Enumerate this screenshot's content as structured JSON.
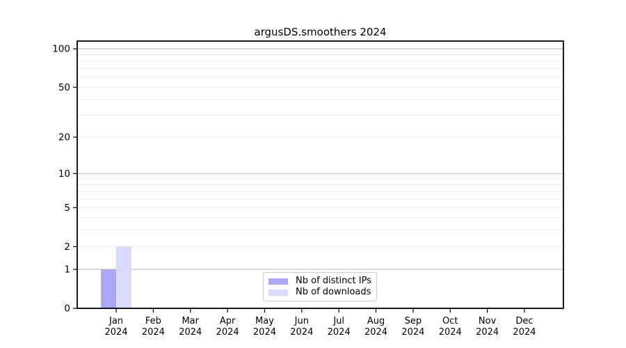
{
  "chart_data": {
    "type": "bar",
    "title": "argusDS.smoothers 2024",
    "months": [
      "Jan",
      "Feb",
      "Mar",
      "Apr",
      "May",
      "Jun",
      "Jul",
      "Aug",
      "Sep",
      "Oct",
      "Nov",
      "Dec"
    ],
    "year": "2024",
    "series": [
      {
        "name": "Nb of distinct IPs",
        "color": "#a8a8f7",
        "values": [
          1,
          0,
          0,
          0,
          0,
          0,
          0,
          0,
          0,
          0,
          0,
          0
        ]
      },
      {
        "name": "Nb of downloads",
        "color": "#d9d9f9",
        "values": [
          2,
          0,
          0,
          0,
          0,
          0,
          0,
          0,
          0,
          0,
          0,
          0
        ]
      }
    ],
    "yscale": "log1p",
    "yticks": [
      0,
      1,
      2,
      5,
      10,
      20,
      50,
      100
    ],
    "ylim": [
      0,
      115
    ],
    "xlim": [
      -1.05,
      12.05
    ],
    "grid": "horizontal",
    "grid_major_color": "#b3b3b3",
    "grid_minor_color": "#eaeaea",
    "legend_position": "inside lower center"
  }
}
